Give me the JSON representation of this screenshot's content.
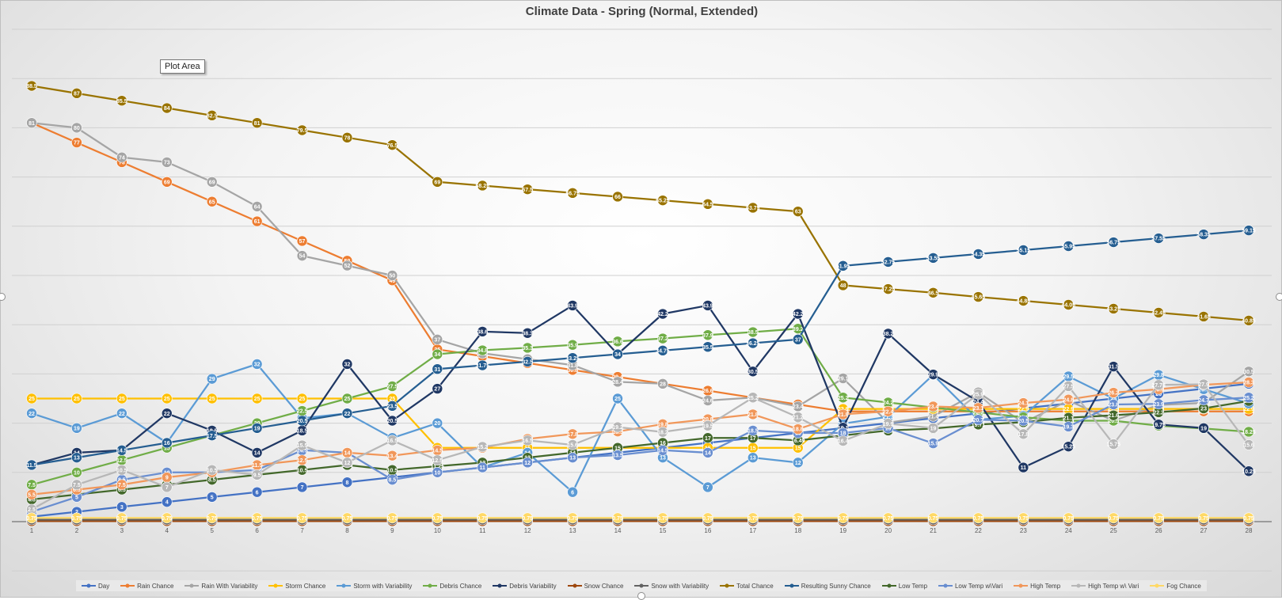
{
  "tooltip": "Plot Area",
  "chart_data": {
    "type": "line",
    "title": "Climate Data - Spring (Normal, Extended)",
    "xlabel": "",
    "ylabel": "",
    "ylim": [
      0,
      100
    ],
    "grid": true,
    "legend_position": "bottom",
    "categories": [
      1,
      2,
      3,
      4,
      5,
      6,
      7,
      8,
      9,
      10,
      11,
      12,
      13,
      14,
      15,
      16,
      17,
      18,
      19,
      20,
      21,
      22,
      23,
      24,
      25,
      26,
      27,
      28
    ],
    "series": [
      {
        "name": "Day",
        "color": "#4472c4",
        "values": [
          1,
          2,
          3,
          4,
          5,
          6,
          7,
          8,
          9,
          10,
          11,
          12,
          13,
          14,
          15,
          16,
          17,
          18,
          19,
          20,
          21,
          22,
          23,
          24,
          25,
          26,
          27,
          28
        ]
      },
      {
        "name": "Rain Chance",
        "color": "#ed7d31",
        "values": [
          81,
          77,
          73,
          69,
          65,
          61,
          57,
          53,
          49,
          35,
          33.6,
          32.2,
          30.8,
          29.4,
          28,
          26.6,
          25.2,
          23.8,
          22.4,
          22.4,
          22.4,
          22.4,
          22.4,
          22.4,
          22.4,
          22.4,
          22.4,
          22.4
        ]
      },
      {
        "name": "Rain With Variability",
        "color": "#a5a5a5",
        "values": [
          81,
          80,
          74,
          73,
          69,
          64,
          54,
          52,
          50,
          37,
          34.2,
          33,
          31.8,
          28.4,
          28,
          24.6,
          25.2,
          23.4,
          29.1,
          20.1,
          21.4,
          26.25,
          20.1,
          24.6,
          20.5,
          23.7,
          24.12,
          30.5
        ]
      },
      {
        "name": "Storm Chance",
        "color": "#ffc000",
        "values": [
          25,
          25,
          25,
          25,
          25,
          25,
          25,
          25,
          25,
          15,
          15,
          15,
          15,
          15,
          15,
          15,
          15,
          15,
          22.9,
          22.9,
          22.9,
          22.9,
          22.9,
          22.9,
          22.9,
          22.9,
          22.9,
          22.9
        ]
      },
      {
        "name": "Storm with Variability",
        "color": "#5b9bd5",
        "values": [
          22,
          19,
          22,
          16,
          29,
          32,
          21,
          22,
          17,
          20,
          11,
          14,
          6,
          25,
          13,
          7,
          13,
          12,
          19.9,
          21.3,
          29.8,
          20.71,
          21.5,
          29.5,
          25,
          29.8,
          26.9,
          24
        ]
      },
      {
        "name": "Debris Chance",
        "color": "#70ad47",
        "values": [
          7.5,
          10,
          12.5,
          15,
          17.5,
          20,
          22.5,
          25,
          27.5,
          34,
          34.8,
          35.3,
          35.9,
          36.6,
          37.2,
          37.9,
          38.5,
          39.2,
          25.2,
          24.2,
          23.2,
          22.2,
          21.2,
          20.5,
          20.5,
          19.5,
          18.9,
          18.25
        ]
      },
      {
        "name": "Debris Variability",
        "color": "#203864",
        "values": [
          11.5,
          14,
          14.5,
          22,
          18.5,
          14,
          18.5,
          32,
          20.5,
          27,
          38.6,
          38.3,
          43.9,
          34,
          42.2,
          43.9,
          30.5,
          42.2,
          19.1,
          38.2,
          29.9,
          24.4,
          11,
          15.25,
          31.5,
          19.75,
          19,
          10.25
        ]
      },
      {
        "name": "Snow Chance",
        "color": "#9e480e",
        "values": [
          0.1,
          0.1,
          0.1,
          0.1,
          0.1,
          0.1,
          0.1,
          0.1,
          0.1,
          0.1,
          0.1,
          0.1,
          0.1,
          0.1,
          0.1,
          0.1,
          0.1,
          0.1,
          0.1,
          0.1,
          0.1,
          0.1,
          0.1,
          0.1,
          0.1,
          0.1,
          0.1,
          0.1
        ]
      },
      {
        "name": "Snow with Variability",
        "color": "#636363",
        "values": [
          0.4,
          0.4,
          0.4,
          0.4,
          0.4,
          0.4,
          0.4,
          0.4,
          0.4,
          0.4,
          0.4,
          0.4,
          0.4,
          0.4,
          0.4,
          0.4,
          0.4,
          0.4,
          0.4,
          0.4,
          0.4,
          0.4,
          0.4,
          0.4,
          0.4,
          0.4,
          0.4,
          0.4
        ]
      },
      {
        "name": "Total Chance",
        "color": "#997300",
        "values": [
          88.5,
          87,
          85.5,
          84,
          82.5,
          81,
          79.5,
          78,
          76.5,
          69,
          68.25,
          67.5,
          66.75,
          66,
          65.25,
          64.5,
          63.75,
          63,
          48,
          47.25,
          46.5,
          45.65,
          44.85,
          44.05,
          43.25,
          42.45,
          41.65,
          40.85
        ]
      },
      {
        "name": "Resulting Sunny Chance",
        "color": "#255e91",
        "values": [
          11.5,
          13,
          14.5,
          16,
          17.5,
          19,
          20.5,
          22,
          23.5,
          31,
          31.75,
          32.5,
          33.25,
          34,
          34.75,
          35.5,
          36.25,
          37,
          51.95,
          52.75,
          53.55,
          54.35,
          55.15,
          55.95,
          56.75,
          57.55,
          58.35,
          59.15
        ]
      },
      {
        "name": "Low Temp",
        "color": "#43682b",
        "values": [
          4.5,
          5.5,
          6.5,
          7.5,
          8.5,
          9.5,
          10.5,
          11.5,
          10.5,
          11.25,
          12,
          13,
          14,
          15,
          16,
          17,
          17,
          16.49,
          17.5,
          18.5,
          18.9,
          19.71,
          20.2,
          21.1,
          21.6,
          22.2,
          23,
          24.5
        ]
      },
      {
        "name": "Low Temp w\\Vari",
        "color": "#698ed0",
        "values": [
          2,
          5,
          8.5,
          10,
          10,
          10.5,
          14.5,
          14,
          8.5,
          10,
          11,
          12,
          13,
          13.5,
          14.5,
          14,
          18.5,
          18,
          18,
          19,
          15.9,
          20.7,
          20.5,
          19.3,
          23.8,
          23.9,
          24.7,
          25.2
        ]
      },
      {
        "name": "High Temp",
        "color": "#f1975a",
        "values": [
          5.5,
          6.5,
          7.5,
          9,
          10,
          11.5,
          12.5,
          14,
          13.4,
          14.5,
          15,
          16.8,
          17.8,
          18.3,
          19.8,
          20.8,
          21.8,
          18.8,
          21.8,
          22.4,
          23.4,
          23.1,
          24.1,
          24.8,
          26.2,
          26.9,
          27.8,
          28.3
        ]
      },
      {
        "name": "High Temp w\\ Vari",
        "color": "#b7b7b7",
        "values": [
          2.5,
          7.5,
          10.5,
          7,
          10.5,
          9.5,
          15.5,
          12,
          16.5,
          12.5,
          15.2,
          16.5,
          15.6,
          19.2,
          18.2,
          19.5,
          25.2,
          21.2,
          16.4,
          19.9,
          19.0,
          25.9,
          17.8,
          27.5,
          15.75,
          27.78,
          27.9,
          15.6
        ]
      },
      {
        "name": "Fog Chance",
        "color": "#ffd966",
        "values": [
          0.75,
          0.75,
          0.75,
          0.75,
          0.75,
          0.75,
          0.75,
          0.75,
          0.75,
          0.75,
          0.75,
          0.75,
          0.75,
          0.75,
          0.75,
          0.75,
          0.75,
          0.75,
          0.75,
          0.75,
          0.75,
          0.75,
          0.75,
          0.75,
          0.75,
          0.75,
          0.75,
          0.75
        ]
      }
    ]
  }
}
